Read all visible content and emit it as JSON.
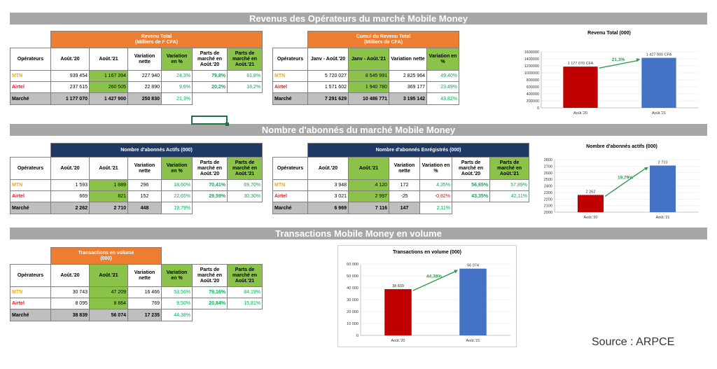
{
  "sections": {
    "revenus_title": "Revenus des Opérateurs  du marché Mobile Money",
    "abonnes_title": "Nombre d'abonnés du marché Mobile Money",
    "transactions_title": "Transactions Mobile Money en volume"
  },
  "revenu_table": {
    "group_header": "Revenu Total\n(Milliers de F CFA)",
    "headers": [
      "Opérateurs",
      "Août.'20",
      "Août.'21",
      "Variation nette",
      "Variation en %",
      "Parts de marché en Août.'20",
      "Parts de marché en Août.'21"
    ],
    "rows": [
      [
        "MTN",
        "939 454",
        "1 167 394",
        "227 940",
        "24,3%",
        "79,8%",
        "81,8%"
      ],
      [
        "Airtel",
        "237 615",
        "260 505",
        "22 890",
        "9,6%",
        "20,2%",
        "18,2%"
      ],
      [
        "Marché",
        "1 177 070",
        "1 427 900",
        "250 830",
        "21,3%",
        "",
        ""
      ]
    ]
  },
  "cumul_table": {
    "group_header": "Cumul du Revenu Total\n(Milliers de CFA)",
    "headers": [
      "Opérateurs",
      "Janv - Août.'20",
      "Janv - Août.'21",
      "Variation nette",
      "Variation en %"
    ],
    "rows": [
      [
        "MTN",
        "5 720 027",
        "8 545 991",
        "2 825 964",
        "49,40%"
      ],
      [
        "Airtel",
        "1 571 602",
        "1 940 780",
        "369 177",
        "23,49%"
      ],
      [
        "Marché",
        "7 291 629",
        "10 486 771",
        "3 195 142",
        "43,82%"
      ]
    ]
  },
  "actifs_table": {
    "group_header": "Nombre d'abonnés Actifs (000)",
    "headers": [
      "Opérateurs",
      "Août.'20",
      "Août.'21",
      "Variation nette",
      "Variation en %",
      "Parts de marché en Août.'20",
      "Parts de marché en Août.'21"
    ],
    "rows": [
      [
        "MTN",
        "1 593",
        "1 889",
        "296",
        "18,60%",
        "70,41%",
        "69,70%"
      ],
      [
        "Airtel",
        "669",
        "821",
        "152",
        "22,65%",
        "29,59%",
        "30,30%"
      ],
      [
        "Marché",
        "2 262",
        "2 710",
        "448",
        "19,79%",
        "",
        ""
      ]
    ]
  },
  "enregistres_table": {
    "group_header": "Nombre d'abonnés Enrégistrés (000)",
    "headers": [
      "Opérateurs",
      "Août.'20",
      "Août.'21",
      "Variation nette",
      "Variation en %",
      "Parts de marché en Août.'20",
      "Parts de marché en Août.'21"
    ],
    "rows": [
      [
        "MTN",
        "3 948",
        "4 120",
        "172",
        "4,35%",
        "56,65%",
        "57,89%"
      ],
      [
        "Airtel",
        "3 021",
        "2 997",
        "-25",
        "-0,82%",
        "43,35%",
        "42,11%"
      ],
      [
        "Marché",
        "6 969",
        "7 116",
        "147",
        "2,11%",
        "",
        ""
      ]
    ]
  },
  "transactions_table": {
    "group_header": "Transactions en volume\n(000)",
    "headers": [
      "Opérateurs",
      "Août.'20",
      "Août.'21",
      "Variation nette",
      "Variation en %",
      "Parts de marché en Août.'20",
      "Parts de marché en Août.'21"
    ],
    "rows": [
      [
        "MTN",
        "30 743",
        "47 209",
        "16 466",
        "53,56%",
        "79,16%",
        "84,19%"
      ],
      [
        "Airtel",
        "8 095",
        "8 864",
        "769",
        "9,50%",
        "20,84%",
        "15,81%"
      ],
      [
        "Marché",
        "38 839",
        "56 074",
        "17 235",
        "44,38%",
        "",
        ""
      ]
    ]
  },
  "source_text": "Source : ARPCE",
  "colors": {
    "red_bar": "#c00000",
    "blue_bar": "#4472c4",
    "green": "#8bc34a",
    "orange": "#ed7d31",
    "navy": "#1f3864",
    "arrow": "#2e9d4e"
  },
  "chart_data": [
    {
      "type": "bar",
      "title": "Revenu Total (000)",
      "categories": [
        "Août.'20",
        "Août.'21"
      ],
      "values": [
        1177070,
        1427900
      ],
      "data_labels": [
        "1 177 070 CFA",
        "1 427 900 CFA"
      ],
      "growth_label": "21,3%",
      "ylim": [
        0,
        1600000
      ],
      "yticks": [
        0,
        200000,
        400000,
        600000,
        800000,
        1000000,
        1200000,
        1400000,
        1600000
      ],
      "ytick_labels": [
        "0",
        "200000",
        "400000",
        "600000",
        "800000",
        "1000000",
        "1200000",
        "1400000",
        "1600000"
      ]
    },
    {
      "type": "bar",
      "title": "Nombre d'abonnés actifs (000)",
      "categories": [
        "Août.'20",
        "Août.'21"
      ],
      "values": [
        2262,
        2710
      ],
      "data_labels": [
        "2 262",
        "2 710"
      ],
      "growth_label": "19,79%",
      "ylim": [
        2000,
        2800
      ],
      "yticks": [
        2000,
        2100,
        2200,
        2300,
        2400,
        2500,
        2600,
        2700,
        2800
      ],
      "ytick_labels": [
        "2000",
        "2100",
        "2200",
        "2300",
        "2400",
        "2500",
        "2600",
        "2700",
        "2800"
      ]
    },
    {
      "type": "bar",
      "title": "Transactions en volume (000)",
      "categories": [
        "Août.'20",
        "Août.'21"
      ],
      "values": [
        38839,
        56074
      ],
      "data_labels": [
        "38 839",
        "56 074"
      ],
      "growth_label": "44,38%",
      "ylim": [
        0,
        60000
      ],
      "yticks": [
        0,
        10000,
        20000,
        30000,
        40000,
        50000,
        60000
      ],
      "ytick_labels": [
        "0",
        "10 000",
        "20 000",
        "30 000",
        "40 000",
        "50 000",
        "60 000"
      ]
    }
  ]
}
